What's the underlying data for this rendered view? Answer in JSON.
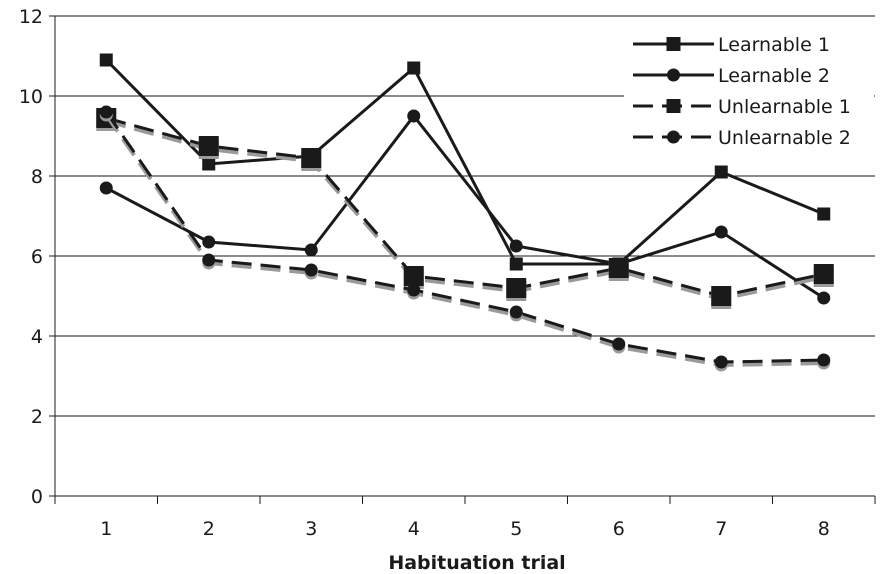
{
  "chart_data": {
    "type": "line",
    "xlabel": "Habituation trial",
    "ylabel": "",
    "categories": [
      "1",
      "2",
      "3",
      "4",
      "5",
      "6",
      "7",
      "8"
    ],
    "ylim": [
      0,
      12
    ],
    "yticks": [
      "0",
      "2",
      "4",
      "6",
      "8",
      "10",
      "12"
    ],
    "grid": "horizontal",
    "legend_position": "top-right",
    "series": [
      {
        "name": "Learnable 1",
        "values": [
          10.9,
          8.3,
          8.5,
          10.7,
          5.8,
          5.8,
          8.1,
          7.05
        ],
        "marker": "square",
        "line": "solid",
        "color": "#1a1a1a"
      },
      {
        "name": "Learnable 2",
        "values": [
          7.7,
          6.35,
          6.15,
          9.5,
          6.25,
          5.8,
          6.6,
          4.95
        ],
        "marker": "circle",
        "line": "solid",
        "color": "#1a1a1a"
      },
      {
        "name": "Unlearnable 1",
        "values": [
          9.45,
          8.75,
          8.45,
          5.5,
          5.2,
          5.7,
          5.0,
          5.55
        ],
        "marker": "square",
        "line": "dashed",
        "color": "#1a1a1a"
      },
      {
        "name": "Unlearnable 2",
        "values": [
          9.6,
          5.9,
          5.65,
          5.15,
          4.6,
          3.8,
          3.35,
          3.4
        ],
        "marker": "circle",
        "line": "dashed",
        "color": "#1a1a1a"
      }
    ]
  }
}
